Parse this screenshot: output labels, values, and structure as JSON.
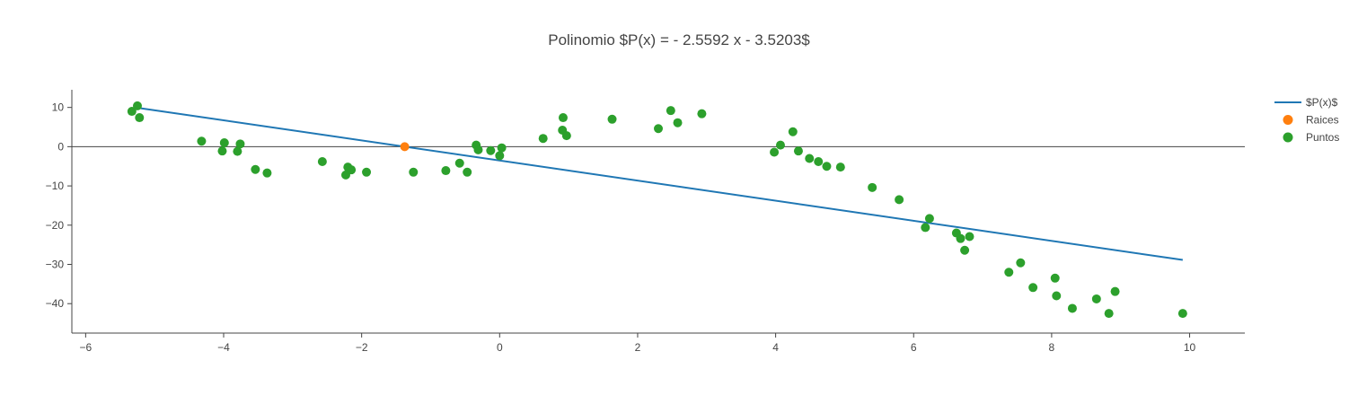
{
  "chart_data": {
    "type": "scatter",
    "title": "Polinomio $P(x) = - 2.5592 x - 3.5203$",
    "xlabel": "",
    "ylabel": "",
    "xlim": [
      -6.2,
      10.8
    ],
    "ylim": [
      -47.5,
      14.5
    ],
    "x_ticks": [
      -6,
      -4,
      -2,
      0,
      2,
      4,
      6,
      8,
      10
    ],
    "x_tick_labels": [
      "−6",
      "−4",
      "−2",
      "0",
      "2",
      "4",
      "6",
      "8",
      "10"
    ],
    "y_ticks": [
      10,
      0,
      -10,
      -20,
      -30,
      -40
    ],
    "y_tick_labels": [
      "10",
      "0",
      "−10",
      "−20",
      "−30",
      "−40"
    ],
    "grid": false,
    "zero_line": true,
    "legend_position": "top-right",
    "series": [
      {
        "name": "$P(x)$",
        "type": "line",
        "color": "#1f77b4",
        "x": [
          -5.2,
          9.9
        ],
        "y": [
          9.79,
          -28.86
        ]
      },
      {
        "name": "Raices",
        "type": "scatter",
        "color": "#ff7f0e",
        "x": [
          -1.376
        ],
        "y": [
          0
        ]
      },
      {
        "name": "Puntos",
        "type": "scatter",
        "color": "#2ca02c",
        "x": [
          -5.33,
          -5.25,
          -5.22,
          -4.32,
          -4.02,
          -3.99,
          -3.8,
          -3.76,
          -3.54,
          -3.37,
          -2.57,
          -2.23,
          -2.2,
          -2.15,
          -1.93,
          -1.25,
          -0.78,
          -0.58,
          -0.47,
          -0.34,
          -0.31,
          -0.13,
          0.0,
          0.03,
          0.63,
          0.91,
          0.92,
          0.97,
          1.63,
          2.3,
          2.48,
          2.58,
          2.93,
          3.98,
          4.07,
          4.25,
          4.33,
          4.49,
          4.62,
          4.74,
          4.94,
          5.4,
          5.79,
          6.17,
          6.23,
          6.62,
          6.68,
          6.74,
          6.81,
          7.38,
          7.55,
          7.73,
          8.05,
          8.07,
          8.3,
          8.65,
          8.83,
          8.92,
          9.9
        ],
        "y": [
          9.0,
          10.4,
          7.4,
          1.4,
          -1.1,
          1.0,
          -1.2,
          0.7,
          -5.8,
          -6.7,
          -3.8,
          -7.2,
          -5.2,
          -5.9,
          -6.5,
          -6.5,
          -6.1,
          -4.2,
          -6.5,
          0.4,
          -0.8,
          -1.0,
          -2.3,
          -0.3,
          2.1,
          4.2,
          7.4,
          2.8,
          7.0,
          4.6,
          9.2,
          6.1,
          8.4,
          -1.4,
          0.4,
          3.8,
          -1.1,
          -3.0,
          -3.8,
          -5.0,
          -5.2,
          -10.4,
          -13.5,
          -20.6,
          -18.3,
          -22.0,
          -23.4,
          -26.4,
          -22.9,
          -32.0,
          -29.6,
          -35.9,
          -33.5,
          -38.0,
          -41.2,
          -38.8,
          -42.5,
          -36.9,
          -42.5
        ]
      }
    ]
  }
}
